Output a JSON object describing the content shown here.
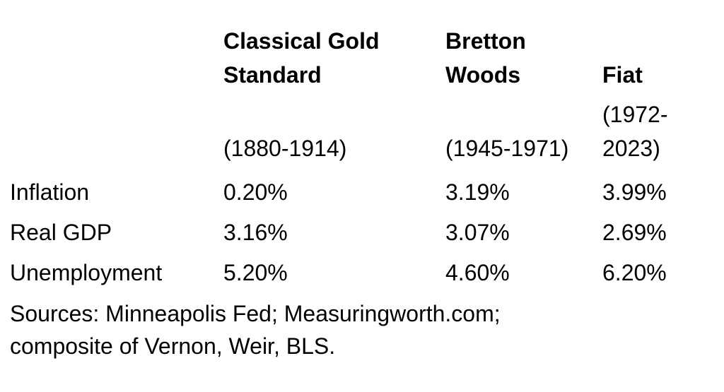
{
  "chart_data": {
    "type": "table",
    "columns": [
      {
        "name": "Classical Gold Standard",
        "period": "(1880-1914)"
      },
      {
        "name": "Bretton Woods",
        "period": "(1945-1971)"
      },
      {
        "name": "Fiat",
        "period": "(1972-2023)"
      }
    ],
    "rows": [
      {
        "label": "Inflation",
        "display": [
          "0.20%",
          "3.19%",
          "3.99%"
        ],
        "values": [
          0.2,
          3.19,
          3.99
        ]
      },
      {
        "label": "Real GDP",
        "display": [
          "3.16%",
          "3.07%",
          "2.69%"
        ],
        "values": [
          3.16,
          3.07,
          2.69
        ]
      },
      {
        "label": "Unemployment",
        "display": [
          "5.20%",
          "4.60%",
          "6.20%"
        ],
        "values": [
          5.2,
          4.6,
          6.2
        ]
      }
    ],
    "unit": "%",
    "note": "Sources: Minneapolis Fed; Measuringworth.com; composite of Vernon, Weir, BLS."
  },
  "colors": {
    "text": "#000000",
    "background": "#ffffff"
  }
}
